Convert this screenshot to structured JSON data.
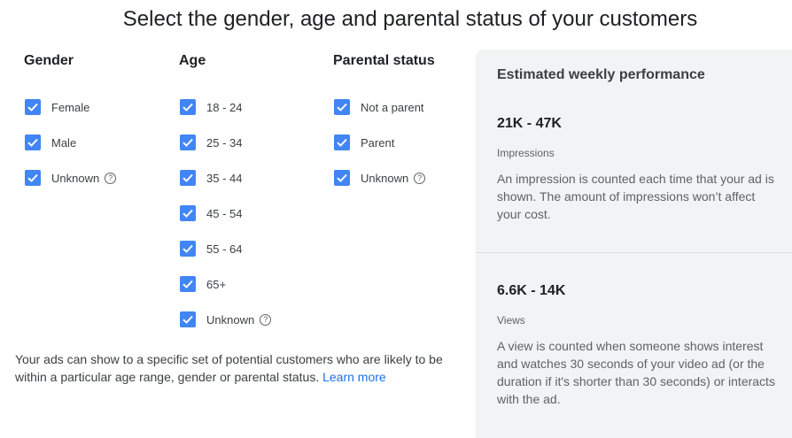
{
  "title": "Select the gender, age and parental status of your customers",
  "gender": {
    "heading": "Gender",
    "options": [
      {
        "label": "Female",
        "checked": true,
        "help": false
      },
      {
        "label": "Male",
        "checked": true,
        "help": false
      },
      {
        "label": "Unknown",
        "checked": true,
        "help": true
      }
    ]
  },
  "age": {
    "heading": "Age",
    "options": [
      {
        "label": "18 - 24",
        "checked": true,
        "help": false
      },
      {
        "label": "25 - 34",
        "checked": true,
        "help": false
      },
      {
        "label": "35 - 44",
        "checked": true,
        "help": false
      },
      {
        "label": "45 - 54",
        "checked": true,
        "help": false
      },
      {
        "label": "55 - 64",
        "checked": true,
        "help": false
      },
      {
        "label": "65+",
        "checked": true,
        "help": false
      },
      {
        "label": "Unknown",
        "checked": true,
        "help": true
      }
    ]
  },
  "parental": {
    "heading": "Parental status",
    "options": [
      {
        "label": "Not a parent",
        "checked": true,
        "help": false
      },
      {
        "label": "Parent",
        "checked": true,
        "help": false
      },
      {
        "label": "Unknown",
        "checked": true,
        "help": true
      }
    ]
  },
  "description": {
    "text": "Your ads can show to a specific set of potential customers who are likely to be within a particular age range, gender or parental status.",
    "link": "Learn more"
  },
  "performance": {
    "title": "Estimated weekly performance",
    "impressions": {
      "value": "21K - 47K",
      "name": "Impressions",
      "description": "An impression is counted each time that your ad is shown. The amount of impressions won’t affect your cost."
    },
    "views": {
      "value": "6.6K - 14K",
      "name": "Views",
      "description": "A view is counted when someone shows interest and watches 30 seconds of your video ad (or the duration if it's shorter than 30 seconds) or interacts with the ad."
    }
  },
  "icons": {
    "checkbox": "checkbox-checked-icon",
    "help": "help-circle-icon"
  },
  "colors": {
    "checkbox": "#4285f4",
    "link": "#1a73e8",
    "panel": "#f1f3f4"
  }
}
